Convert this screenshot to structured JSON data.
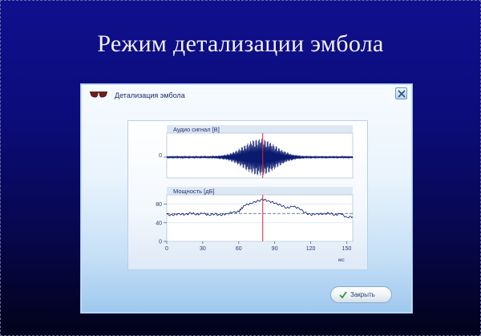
{
  "slide": {
    "title": "Режим детализации эмбола"
  },
  "window": {
    "title": "Детализация эмбола",
    "icon": "glasses-icon",
    "close_icon": "close-x-icon"
  },
  "chart_data": [
    {
      "type": "line",
      "title": "Аудио сигнал [В]",
      "y_ticks": [
        "0"
      ],
      "marker_x": 80,
      "xlim": [
        0,
        155
      ]
    },
    {
      "type": "line",
      "title": "Мощность [дБ]",
      "y_ticks": [
        "80",
        "40",
        "0"
      ],
      "ylim": [
        0,
        100
      ],
      "x_ticks": [
        "0",
        "30",
        "60",
        "90",
        "120",
        "150"
      ],
      "xlim": [
        0,
        155
      ],
      "x_unit": "мс",
      "threshold": 60,
      "marker_x": 80,
      "series": [
        {
          "x": [
            0,
            5,
            10,
            15,
            20,
            25,
            30,
            35,
            40,
            45,
            50,
            55,
            60,
            62,
            65,
            70,
            75,
            80,
            85,
            90,
            95,
            100,
            105,
            110,
            115,
            120,
            125,
            130,
            135,
            140,
            145,
            150,
            155
          ],
          "values": [
            58,
            56,
            60,
            57,
            61,
            58,
            60,
            57,
            59,
            56,
            60,
            62,
            64,
            70,
            77,
            82,
            86,
            90,
            87,
            82,
            78,
            72,
            75,
            72,
            62,
            57,
            60,
            58,
            61,
            57,
            59,
            52,
            53
          ]
        }
      ]
    }
  ],
  "close_button": {
    "label": "Закрыть",
    "icon": "check-icon"
  },
  "colors": {
    "marker": "#e8202a",
    "signal": "#0a1a6e",
    "background": "#0c0c7a"
  }
}
